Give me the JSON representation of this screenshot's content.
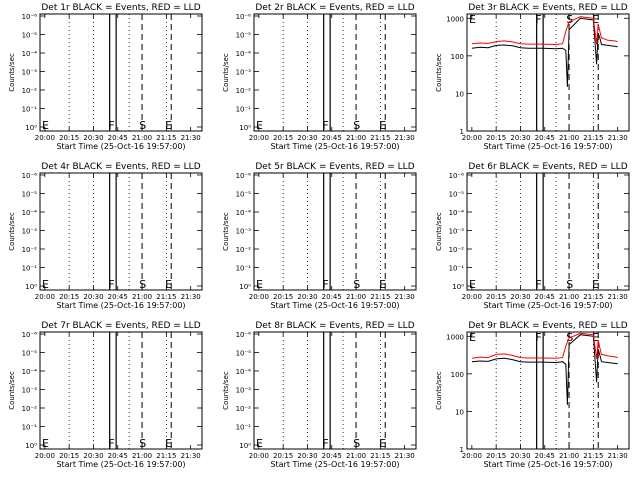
{
  "figure": {
    "xlabel": "Start Time (25-Oct-16 19:57:00)",
    "ylabel": "Counts/sec",
    "x_ticks": [
      "20:00",
      "20:15",
      "20:30",
      "20:45",
      "21:00",
      "21:15",
      "21:30"
    ],
    "y_ticks_small": [
      "10⁰",
      "10⁻¹",
      "10⁻²",
      "10⁻³",
      "10⁻⁴",
      "10⁻⁵",
      "10⁻⁶"
    ],
    "y_ticks_large": [
      "1",
      "10",
      "100",
      "1000"
    ],
    "markers": [
      "E",
      "F",
      "S",
      "E"
    ],
    "colors": {
      "events": "#000000",
      "lld": "#ff0000",
      "axes": "#000000"
    }
  },
  "chart_data": [
    {
      "type": "line",
      "title": "Det 1r BLACK = Events, RED = LLD",
      "scale": "small",
      "x": [],
      "series": []
    },
    {
      "type": "line",
      "title": "Det 2r BLACK = Events, RED = LLD",
      "scale": "small",
      "x": [],
      "series": []
    },
    {
      "type": "line",
      "title": "Det 3r BLACK = Events, RED = LLD",
      "scale": "large",
      "x": [
        "20:00",
        "20:05",
        "20:10",
        "20:15",
        "20:20",
        "20:25",
        "20:30",
        "20:35",
        "20:40",
        "20:44",
        "20:52",
        "20:56",
        "20:58",
        "20:59",
        "21:00",
        "21:07",
        "21:15",
        "21:17",
        "21:18",
        "21:19",
        "21:20",
        "21:24",
        "21:28",
        "21:30"
      ],
      "series": [
        {
          "name": "Events",
          "color": "#000000",
          "values": [
            160,
            170,
            165,
            190,
            195,
            185,
            165,
            160,
            160,
            160,
            155,
            160,
            140,
            15,
            500,
            1000,
            900,
            60,
            400,
            300,
            200,
            190,
            180,
            175
          ]
        },
        {
          "name": "LLD",
          "color": "#ff0000",
          "values": [
            210,
            220,
            215,
            240,
            250,
            235,
            210,
            205,
            205,
            205,
            200,
            210,
            450,
            600,
            800,
            1100,
            1000,
            200,
            700,
            450,
            300,
            260,
            250,
            240
          ]
        }
      ]
    },
    {
      "type": "line",
      "title": "Det 4r BLACK = Events, RED = LLD",
      "scale": "small",
      "x": [],
      "series": []
    },
    {
      "type": "line",
      "title": "Det 5r BLACK = Events, RED = LLD",
      "scale": "small",
      "x": [],
      "series": []
    },
    {
      "type": "line",
      "title": "Det 6r BLACK = Events, RED = LLD",
      "scale": "small",
      "x": [],
      "series": []
    },
    {
      "type": "line",
      "title": "Det 7r BLACK = Events, RED = LLD",
      "scale": "small",
      "x": [],
      "series": []
    },
    {
      "type": "line",
      "title": "Det 8r BLACK = Events, RED = LLD",
      "scale": "small",
      "x": [],
      "series": []
    },
    {
      "type": "line",
      "title": "Det 9r BLACK = Events, RED = LLD",
      "scale": "large",
      "x": [
        "20:00",
        "20:05",
        "20:10",
        "20:15",
        "20:20",
        "20:25",
        "20:30",
        "20:35",
        "20:40",
        "20:44",
        "20:52",
        "20:56",
        "20:58",
        "20:59",
        "21:00",
        "21:07",
        "21:15",
        "21:17",
        "21:18",
        "21:19",
        "21:20",
        "21:24",
        "21:28",
        "21:30"
      ],
      "series": [
        {
          "name": "Events",
          "color": "#000000",
          "values": [
            210,
            220,
            215,
            250,
            260,
            240,
            210,
            205,
            205,
            205,
            200,
            210,
            180,
            15,
            600,
            1100,
            1000,
            60,
            450,
            320,
            210,
            200,
            190,
            185
          ]
        },
        {
          "name": "LLD",
          "color": "#ff0000",
          "values": [
            260,
            280,
            270,
            330,
            340,
            310,
            270,
            265,
            265,
            265,
            260,
            270,
            550,
            700,
            900,
            1200,
            1100,
            250,
            800,
            500,
            330,
            300,
            285,
            270
          ]
        }
      ]
    }
  ]
}
